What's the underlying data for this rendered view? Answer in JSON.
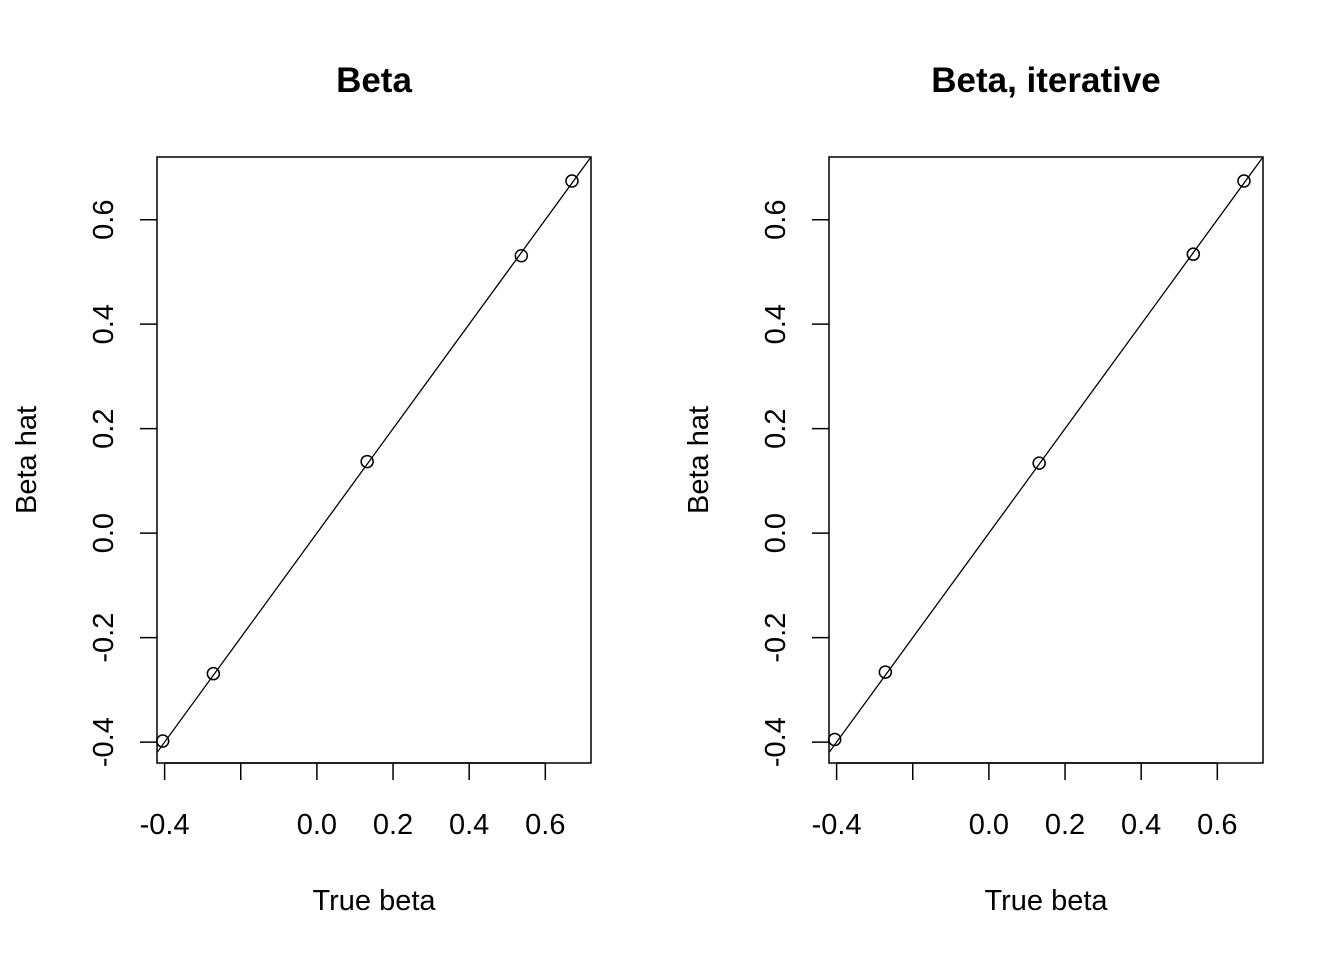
{
  "chart_data": [
    {
      "type": "scatter",
      "title": "Beta",
      "xlabel": "True beta",
      "ylabel": "Beta hat",
      "xlim": [
        -0.42,
        0.72
      ],
      "ylim": [
        -0.44,
        0.72
      ],
      "x_ticks": [
        -0.4,
        -0.2,
        0.0,
        0.2,
        0.4,
        0.6
      ],
      "x_tick_labels": [
        "-0.4",
        "",
        "0.0",
        "0.2",
        "0.4",
        "0.6"
      ],
      "y_ticks": [
        -0.4,
        -0.2,
        0.0,
        0.2,
        0.4,
        0.6
      ],
      "y_tick_labels": [
        "-0.4",
        "-0.2",
        "0.0",
        "0.2",
        "0.4",
        "0.6"
      ],
      "points": [
        {
          "x": -0.405,
          "y": -0.398
        },
        {
          "x": -0.272,
          "y": -0.269
        },
        {
          "x": 0.132,
          "y": 0.137
        },
        {
          "x": 0.537,
          "y": 0.531
        },
        {
          "x": 0.67,
          "y": 0.674
        }
      ],
      "reference_line": {
        "intercept": 0,
        "slope": 1
      },
      "grid": false,
      "marker": "open-circle"
    },
    {
      "type": "scatter",
      "title": "Beta, iterative",
      "xlabel": "True beta",
      "ylabel": "Beta hat",
      "xlim": [
        -0.42,
        0.72
      ],
      "ylim": [
        -0.44,
        0.72
      ],
      "x_ticks": [
        -0.4,
        -0.2,
        0.0,
        0.2,
        0.4,
        0.6
      ],
      "x_tick_labels": [
        "-0.4",
        "",
        "0.0",
        "0.2",
        "0.4",
        "0.6"
      ],
      "y_ticks": [
        -0.4,
        -0.2,
        0.0,
        0.2,
        0.4,
        0.6
      ],
      "y_tick_labels": [
        "-0.4",
        "-0.2",
        "0.0",
        "0.2",
        "0.4",
        "0.6"
      ],
      "points": [
        {
          "x": -0.405,
          "y": -0.395
        },
        {
          "x": -0.272,
          "y": -0.266
        },
        {
          "x": 0.132,
          "y": 0.134
        },
        {
          "x": 0.537,
          "y": 0.534
        },
        {
          "x": 0.67,
          "y": 0.674
        }
      ],
      "reference_line": {
        "intercept": 0,
        "slope": 1
      },
      "grid": false,
      "marker": "open-circle"
    }
  ]
}
